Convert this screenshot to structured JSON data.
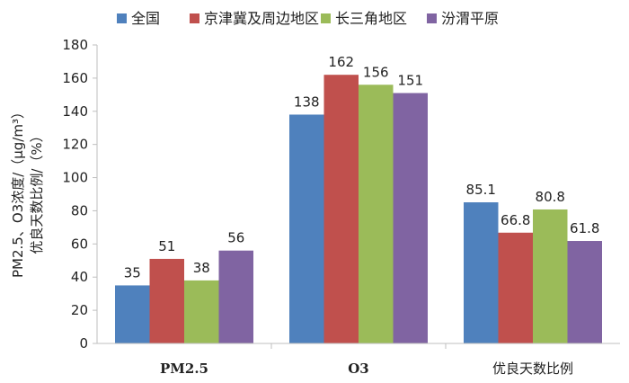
{
  "chart_data": {
    "type": "bar",
    "title": "",
    "xlabel": "",
    "ylabel_line1": "PM2.5、O3浓度/（μg/m³）",
    "ylabel_line2": "优良天数比例/（%）",
    "ylim": [
      0,
      180
    ],
    "yticks": [
      0,
      20,
      40,
      60,
      80,
      100,
      120,
      140,
      160,
      180
    ],
    "grid": false,
    "legend_position": "top",
    "categories": [
      "PM2.5",
      "O3",
      "优良天数比例"
    ],
    "series": [
      {
        "name": "全国",
        "color": "#4f81bd",
        "values": [
          35,
          138,
          85.1
        ],
        "labels": [
          "35",
          "138",
          "85.1"
        ]
      },
      {
        "name": "京津冀及周边地区",
        "color": "#c0504d",
        "values": [
          51,
          162,
          66.8
        ],
        "labels": [
          "51",
          "162",
          "66.8"
        ]
      },
      {
        "name": "长三角地区",
        "color": "#9bbb59",
        "values": [
          38,
          156,
          80.8
        ],
        "labels": [
          "38",
          "156",
          "80.8"
        ]
      },
      {
        "name": "汾渭平原",
        "color": "#8064a2",
        "values": [
          56,
          151,
          61.8
        ],
        "labels": [
          "56",
          "151",
          "61.8"
        ]
      }
    ]
  }
}
